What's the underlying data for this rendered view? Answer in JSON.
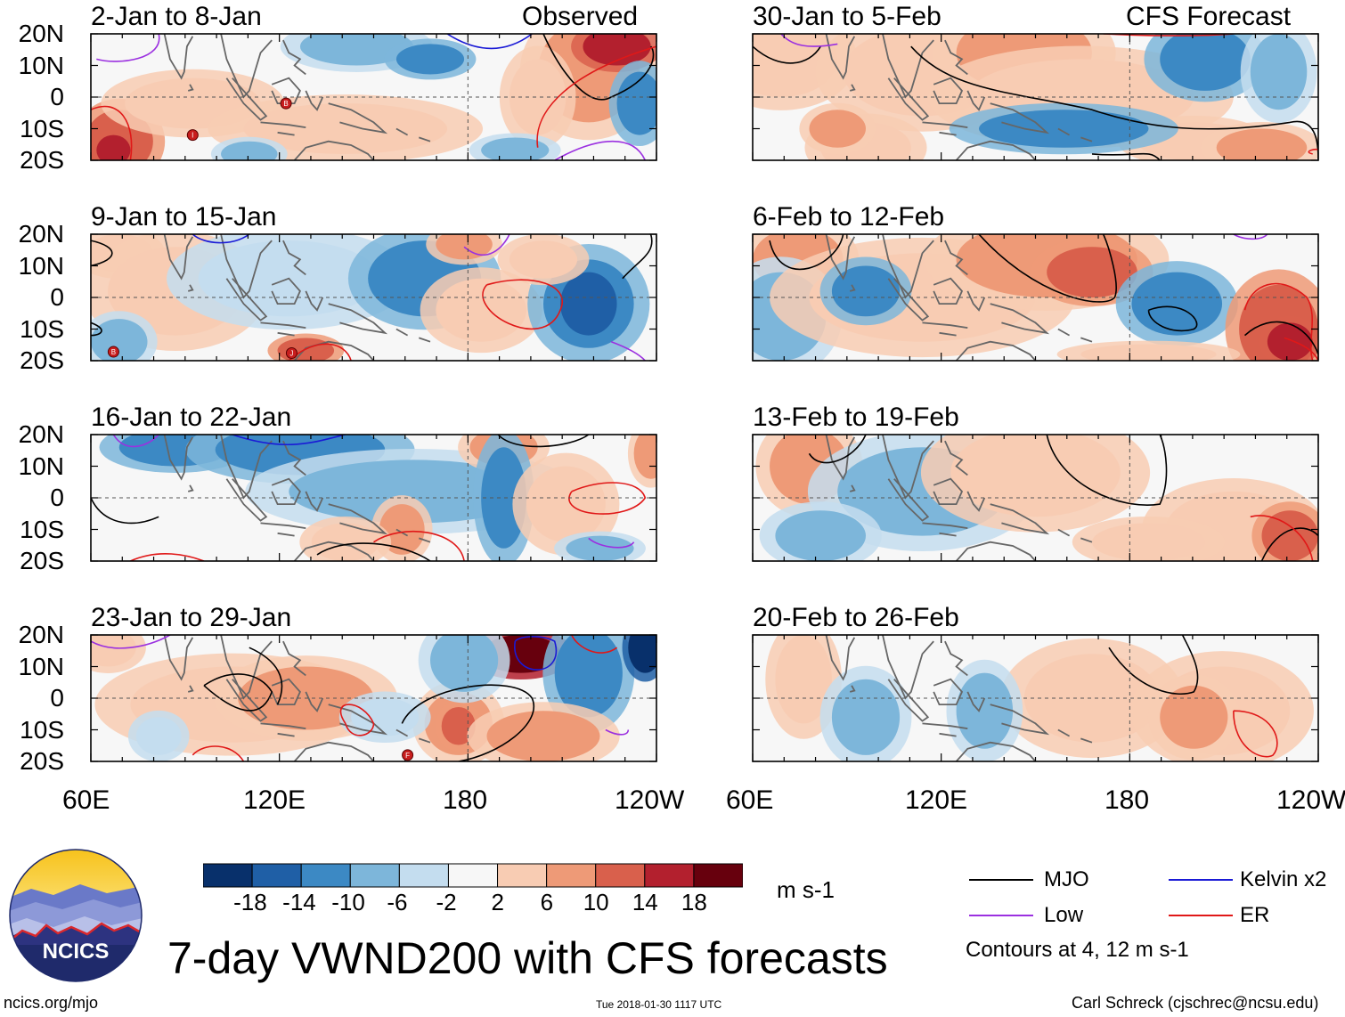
{
  "figure": {
    "title": "7-day VWND200 with CFS forecasts",
    "units": "m s-1",
    "website": "ncics.org/mjo",
    "timestamp": "Tue 2018-01-30 1117 UTC",
    "author": "Carl Schreck (cjschrec@ncsu.edu)",
    "logo_text": "NCICS",
    "observed_label": "Observed",
    "forecast_label": "CFS Forecast"
  },
  "panels": {
    "observed": [
      {
        "period": "2-Jan to 8-Jan"
      },
      {
        "period": "9-Jan to 15-Jan"
      },
      {
        "period": "16-Jan to 22-Jan"
      },
      {
        "period": "23-Jan to 29-Jan"
      }
    ],
    "forecast": [
      {
        "period": "30-Jan to 5-Feb"
      },
      {
        "period": "6-Feb to 12-Feb"
      },
      {
        "period": "13-Feb to 19-Feb"
      },
      {
        "period": "20-Feb to 26-Feb"
      }
    ]
  },
  "axes": {
    "lat_labels": [
      "20N",
      "10N",
      "0",
      "10S",
      "20S"
    ],
    "lon_labels": [
      "60E",
      "120E",
      "180",
      "120W"
    ]
  },
  "colorbar": {
    "ticks": [
      "-18",
      "-14",
      "-10",
      "-6",
      "-2",
      "2",
      "6",
      "10",
      "14",
      "18"
    ],
    "colors": [
      "#08306b",
      "#1f5fa6",
      "#3c89c4",
      "#7db6da",
      "#c4ddef",
      "#f7f7f7",
      "#f8ccb3",
      "#ee9a77",
      "#d9604c",
      "#b3202e",
      "#67000d"
    ]
  },
  "legend": {
    "items": [
      {
        "label": "MJO",
        "color": "#000000"
      },
      {
        "label": "Kelvin x2",
        "color": "#1a1ad6"
      },
      {
        "label": "Low",
        "color": "#9b30e0"
      },
      {
        "label": "ER",
        "color": "#e01818"
      }
    ],
    "contours_note": "Contours at 4, 12 m s-1"
  },
  "storm_markers": [
    {
      "letter": "B"
    },
    {
      "letter": "I"
    },
    {
      "letter": "B"
    },
    {
      "letter": "J"
    },
    {
      "letter": "F"
    }
  ]
}
